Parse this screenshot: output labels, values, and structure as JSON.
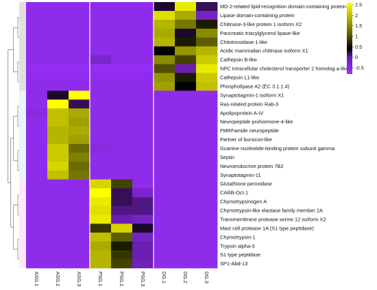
{
  "chart_data": {
    "type": "heatmap",
    "columns": [
      "ASG.1",
      "ASG.2",
      "ASG.3",
      "PSG.1",
      "PSG.2",
      "PSG.3",
      "DG.1",
      "DG.2",
      "DG.3"
    ],
    "rows": [
      "MD-2-related lipid-recognition domain-containing protein",
      "Lipase domain-containing protein",
      "Chitinase-3-like protein 1 isoform X2",
      "Pancreatic triacylglycerol lipase-like",
      "Chitotriosidase-1-like",
      "Acidic mammalian chitinase isoform X1",
      "Cathepsin B-like",
      "NPC intracellular cholesterol transporter 2 homolog a-like",
      "Cathepsin L1-like",
      "Phospholipase A2 (EC 3.1.1.4)",
      "Synaptotagmin-1 isoform X1",
      "Ras-related protein Rab-3",
      "Apolipoprotein A-IV",
      "Neuropeptide prohormone-4-like",
      "FMRFamide neuropeptide",
      "Partner of bursicon-like",
      "Guanine nucleotide-binding protein subunit gamma",
      "Septin",
      "Neuroendocrine protein 7B2",
      "Synaptotagmin-11",
      "Glutathione peroxidase",
      "CARB-Oct-1",
      "Chymotrypsinogen A",
      "Chymotrypsin-like elastase family member 2A",
      "Transmembrane protease serine 12 isoform X2",
      "Mast cell protease 1A  (S1 type peptidase)",
      "Chymotrypsin-1",
      "Trypsin alpha-3",
      "S1 type peptidase",
      "SP1-Abd-13"
    ],
    "values": [
      [
        -0.6,
        -0.6,
        -0.6,
        -0.6,
        -0.6,
        -0.6,
        0.3,
        2.4,
        0.2
      ],
      [
        -0.6,
        -0.6,
        -0.6,
        -0.6,
        -0.6,
        -0.6,
        2.3,
        1.8,
        -0.2
      ],
      [
        -0.6,
        -0.6,
        -0.6,
        -0.6,
        -0.6,
        -0.6,
        1.9,
        1.3,
        0.6
      ],
      [
        -0.6,
        -0.6,
        -0.6,
        -0.6,
        -0.6,
        -0.6,
        1.8,
        0.3,
        1.5
      ],
      [
        -0.6,
        -0.6,
        -0.6,
        -0.6,
        -0.6,
        -0.6,
        1.9,
        0.6,
        1.1
      ],
      [
        -0.6,
        -0.6,
        -0.6,
        -0.6,
        -0.6,
        -0.6,
        0.4,
        1.6,
        1.9
      ],
      [
        -0.6,
        -0.6,
        -0.6,
        -0.3,
        -0.6,
        -0.6,
        1.5,
        0.9,
        2.1
      ],
      [
        -0.7,
        -0.7,
        -0.7,
        -0.7,
        -0.7,
        -0.7,
        1.0,
        0.0,
        2.4
      ],
      [
        -0.6,
        -0.6,
        -0.6,
        -0.6,
        -0.6,
        -0.6,
        1.6,
        0.6,
        2.1
      ],
      [
        -0.6,
        -0.6,
        -0.6,
        -0.6,
        -0.6,
        -0.6,
        1.7,
        0.4,
        2.0
      ],
      [
        -0.6,
        0.3,
        2.6,
        -0.6,
        -0.6,
        -0.6,
        -0.6,
        -0.6,
        -0.6
      ],
      [
        -0.6,
        2.6,
        0.2,
        -0.6,
        -0.6,
        -0.6,
        -0.6,
        -0.6,
        -0.6
      ],
      [
        -0.5,
        2.0,
        1.8,
        -0.6,
        -0.6,
        -0.6,
        -0.6,
        -0.6,
        -0.6
      ],
      [
        -0.6,
        2.0,
        1.7,
        -0.6,
        -0.6,
        -0.6,
        -0.6,
        -0.6,
        -0.6
      ],
      [
        -0.6,
        1.9,
        1.8,
        -0.6,
        -0.6,
        -0.6,
        -0.6,
        -0.6,
        -0.6
      ],
      [
        -0.6,
        1.9,
        1.7,
        -0.6,
        -0.6,
        -0.6,
        -0.6,
        -0.6,
        -0.6
      ],
      [
        -0.6,
        2.1,
        1.2,
        -0.5,
        -0.6,
        -0.6,
        -0.6,
        -0.6,
        -0.6
      ],
      [
        -0.6,
        2.1,
        1.4,
        -0.6,
        -0.6,
        -0.6,
        -0.6,
        -0.6,
        -0.6
      ],
      [
        -0.6,
        2.2,
        1.2,
        -0.6,
        -0.6,
        -0.6,
        -0.6,
        -0.6,
        -0.6
      ],
      [
        -0.6,
        2.0,
        1.3,
        -0.6,
        -0.6,
        -0.6,
        -0.6,
        -0.6,
        -0.6
      ],
      [
        -0.6,
        -0.6,
        -0.6,
        2.2,
        0.9,
        -0.6,
        -0.6,
        -0.6,
        -0.6
      ],
      [
        -0.6,
        -0.6,
        -0.6,
        2.6,
        0.2,
        -0.3,
        -0.6,
        -0.6,
        -0.6
      ],
      [
        -0.6,
        -0.6,
        -0.6,
        2.4,
        0.2,
        0.1,
        -0.6,
        -0.6,
        -0.6
      ],
      [
        -0.6,
        -0.6,
        -0.6,
        2.3,
        0.1,
        0.1,
        -0.6,
        -0.6,
        -0.6
      ],
      [
        -0.6,
        -0.6,
        -0.6,
        2.4,
        0.0,
        -0.2,
        -0.6,
        -0.6,
        -0.6
      ],
      [
        -0.6,
        -0.6,
        -0.6,
        0.8,
        2.2,
        0.3,
        -0.6,
        -0.6,
        -0.6
      ],
      [
        -0.6,
        -0.6,
        -0.6,
        2.0,
        1.1,
        -0.2,
        -0.6,
        -0.6,
        -0.6
      ],
      [
        -0.6,
        -0.6,
        -0.6,
        1.8,
        0.6,
        0.0,
        -0.6,
        -0.6,
        -0.6
      ],
      [
        -0.6,
        -0.6,
        -0.6,
        1.9,
        0.8,
        0.0,
        -0.6,
        -0.6,
        -0.6
      ],
      [
        -0.6,
        -0.6,
        -0.6,
        1.9,
        0.9,
        -0.1,
        -0.6,
        -0.6,
        -0.6
      ]
    ],
    "color_scale": {
      "min": -0.8,
      "max": 2.6,
      "stops": [
        {
          "value": -0.8,
          "color": "#9b30ff"
        },
        {
          "value": 0.0,
          "color": "#6a1fb0"
        },
        {
          "value": 0.4,
          "color": "#000000"
        },
        {
          "value": 1.2,
          "color": "#6b6b00"
        },
        {
          "value": 2.6,
          "color": "#ffff00"
        }
      ],
      "ticks": [
        2.5,
        2,
        1.5,
        1,
        0.5,
        0,
        -0.5
      ],
      "tick_labels": [
        "2.5",
        "2",
        "1.5",
        "1",
        "0.5",
        "0",
        "-0.5"
      ]
    },
    "row_groups": [
      {
        "color": "#e0e0e0",
        "rows": [
          0,
          9
        ]
      },
      {
        "color": "#e8f4ff",
        "rows": [
          10,
          19
        ]
      },
      {
        "color": "#ffe8f8",
        "rows": [
          20,
          29
        ]
      }
    ],
    "grid": true,
    "legend": "right"
  }
}
